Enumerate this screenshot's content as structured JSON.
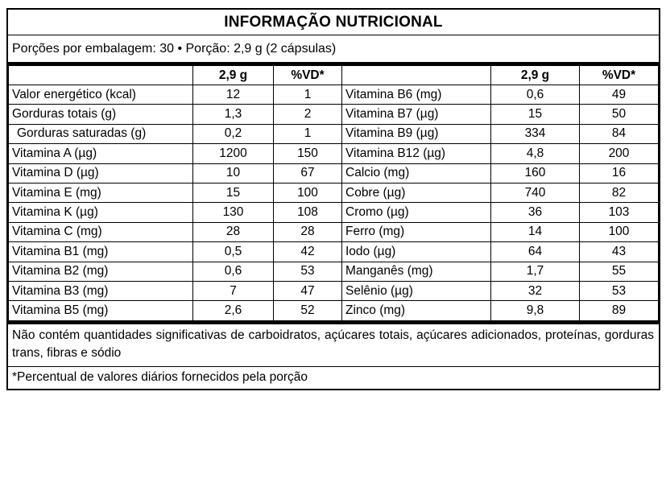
{
  "title": "INFORMAÇÃO NUTRICIONAL",
  "serving_info": "Porções por embalagem: 30 • Porção: 2,9 g (2 cápsulas)",
  "table": {
    "headers": {
      "amount": "2,9 g",
      "dv": "%VD*"
    },
    "left_rows": [
      {
        "label": "Valor energético (kcal)",
        "amount": "12",
        "dv": "1"
      },
      {
        "label": "Gorduras totais (g)",
        "amount": "1,3",
        "dv": "2"
      },
      {
        "label": "Gorduras saturadas (g)",
        "amount": "0,2",
        "dv": "1",
        "indent": true
      },
      {
        "label": "Vitamina A (µg)",
        "amount": "1200",
        "dv": "150"
      },
      {
        "label": "Vitamina D (µg)",
        "amount": "10",
        "dv": "67"
      },
      {
        "label": "Vitamina E (mg)",
        "amount": "15",
        "dv": "100"
      },
      {
        "label": "Vitamina K (µg)",
        "amount": "130",
        "dv": "108"
      },
      {
        "label": "Vitamina C (mg)",
        "amount": "28",
        "dv": "28"
      },
      {
        "label": "Vitamina B1 (mg)",
        "amount": "0,5",
        "dv": "42"
      },
      {
        "label": "Vitamina B2 (mg)",
        "amount": "0,6",
        "dv": "53"
      },
      {
        "label": "Vitamina B3 (mg)",
        "amount": "7",
        "dv": "47"
      },
      {
        "label": "Vitamina B5 (mg)",
        "amount": "2,6",
        "dv": "52"
      }
    ],
    "right_rows": [
      {
        "label": "Vitamina B6 (mg)",
        "amount": "0,6",
        "dv": "49"
      },
      {
        "label": "Vitamina B7 (µg)",
        "amount": "15",
        "dv": "50"
      },
      {
        "label": "Vitamina B9 (µg)",
        "amount": "334",
        "dv": "84"
      },
      {
        "label": "Vitamina B12 (µg)",
        "amount": "4,8",
        "dv": "200"
      },
      {
        "label": "Calcio (mg)",
        "amount": "160",
        "dv": "16"
      },
      {
        "label": "Cobre (µg)",
        "amount": "740",
        "dv": "82"
      },
      {
        "label": "Cromo (µg)",
        "amount": "36",
        "dv": "103"
      },
      {
        "label": "Ferro (mg)",
        "amount": "14",
        "dv": "100"
      },
      {
        "label": "Iodo (µg)",
        "amount": "64",
        "dv": "43"
      },
      {
        "label": "Manganês (mg)",
        "amount": "1,7",
        "dv": "55"
      },
      {
        "label": "Selênio (µg)",
        "amount": "32",
        "dv": "53"
      },
      {
        "label": "Zinco (mg)",
        "amount": "9,8",
        "dv": "89"
      }
    ]
  },
  "footnotes": {
    "no_significant_amounts": "Não contém quantidades significativas de carboidratos, açúcares totais, açúcares adicionados, proteínas, gorduras trans, fibras e sódio",
    "dv_explanation": "*Percentual de valores diários fornecidos pela porção"
  }
}
